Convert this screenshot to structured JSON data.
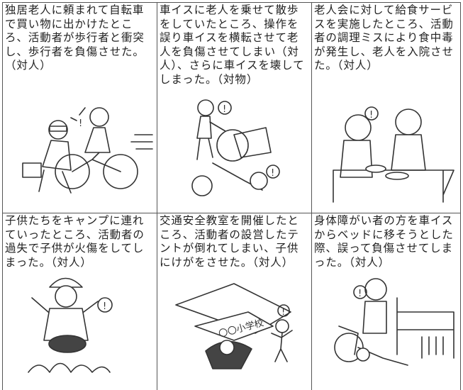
{
  "cells": [
    {
      "lines": [
        "独居老人に頼まれて自転車",
        "で買い物に出かけたとこ",
        "ろ、活動者が歩行者と衝突",
        "し、歩行者を負傷させた。",
        "（対人）"
      ]
    },
    {
      "lines": [
        "車イスに老人を乗せて散歩",
        "をしていたところ、操作を",
        "誤り車イスを横転させて老",
        "人を負傷させてしまい（対",
        "人）、さらに車イスを壊して",
        "しまった。（対物）"
      ]
    },
    {
      "lines": [
        "老人会に対して給食サービ",
        "スを実施したところ、活動",
        "者の調理ミスにより食中毒",
        "が発生し、老人を入院させ",
        "た。（対人）"
      ]
    },
    {
      "lines": [
        "子供たちをキャンプに連れ",
        "ていったところ、活動者の",
        "過失で子供が火傷をしてし",
        "まった。（対人）"
      ]
    },
    {
      "lines": [
        "交通安全教室を開催したと",
        "ころ、活動者の設営したテ",
        "ントが倒れてしまい、子供",
        "にけがをさせた。（対人）"
      ],
      "sign": "〇〇小学校"
    },
    {
      "lines": [
        "身体障がい者の方を車イス",
        "からベッドに移そうとした",
        "際、誤って負傷させてしま",
        "った。（対人）"
      ]
    }
  ]
}
